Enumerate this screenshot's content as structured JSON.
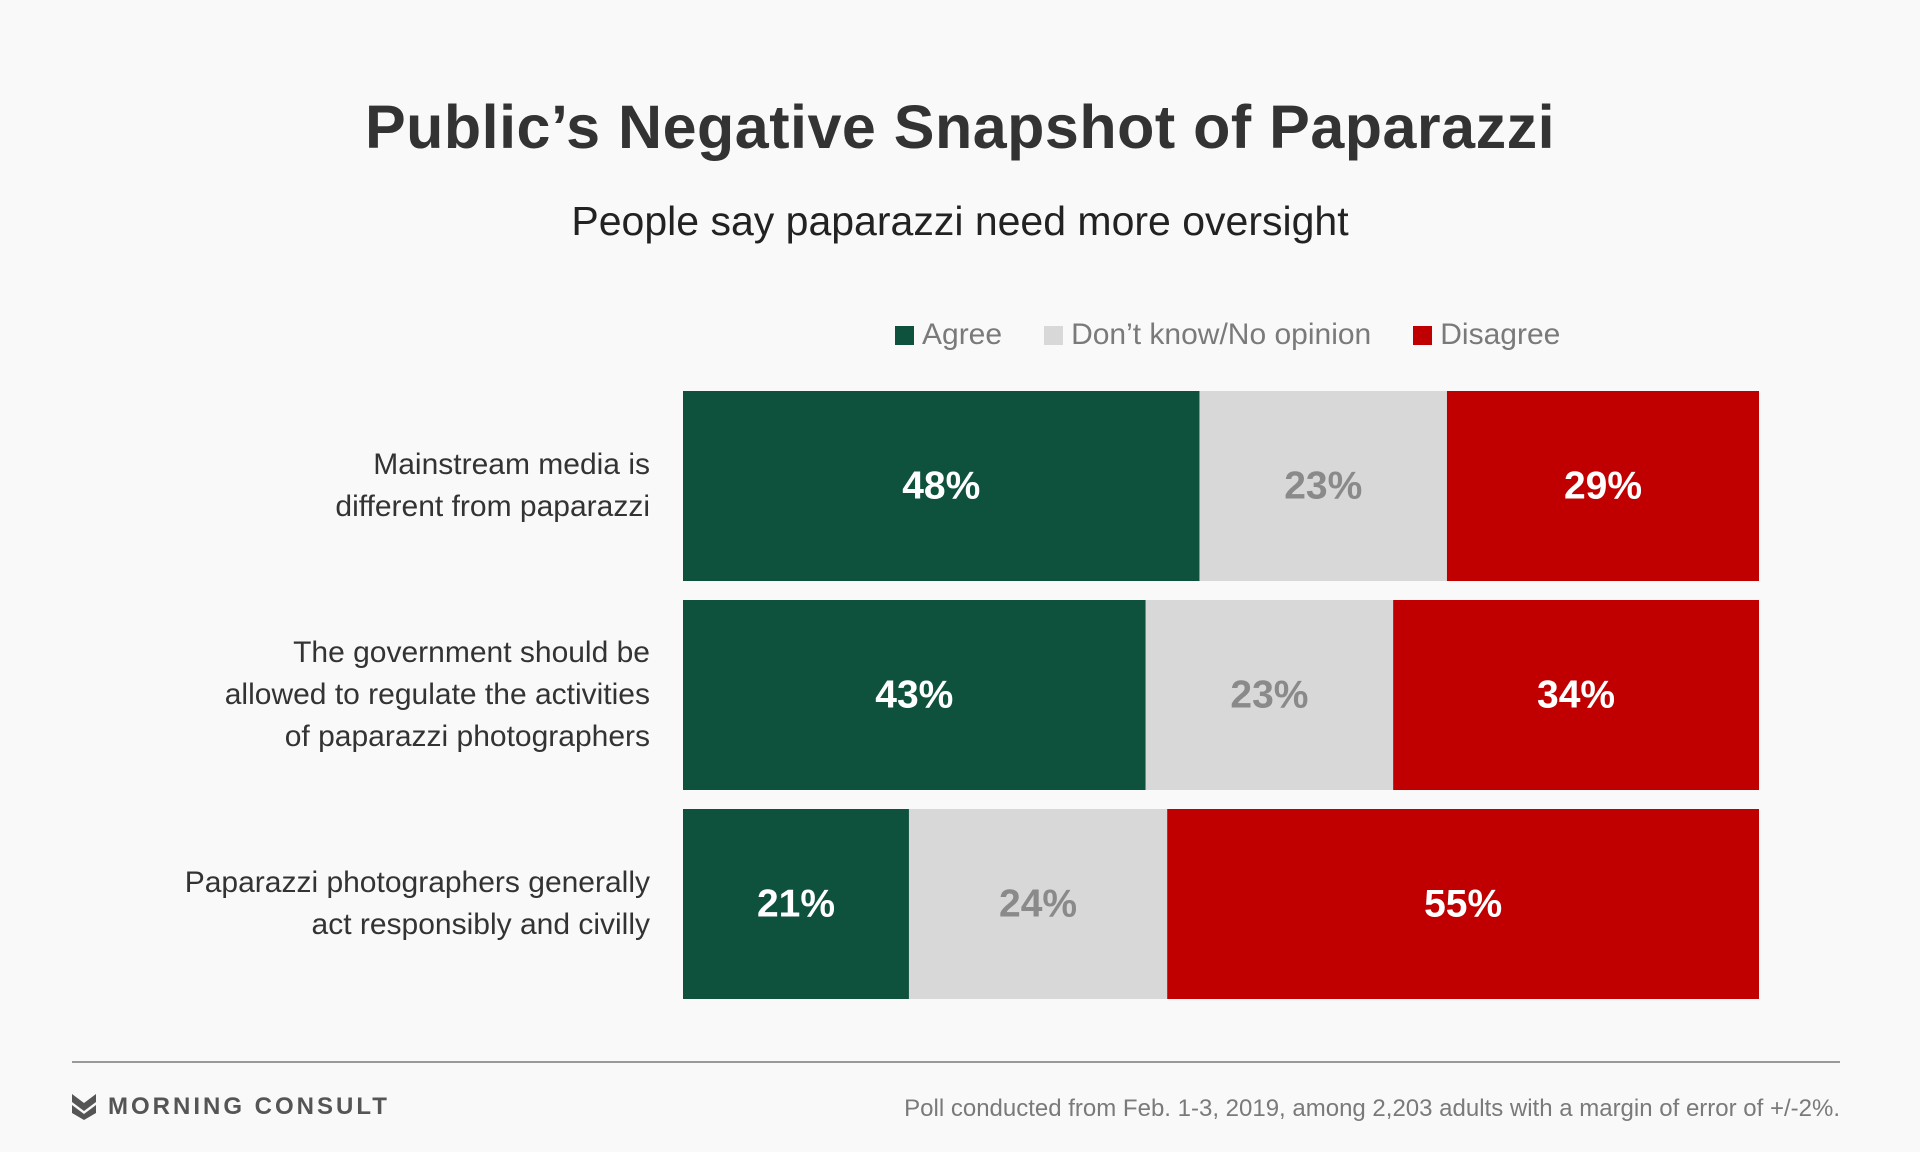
{
  "title": "Public’s Negative Snapshot of Paparazzi",
  "subtitle": "People say paparazzi need more oversight",
  "legend": [
    {
      "label": "Agree",
      "color": "#0e523d"
    },
    {
      "label": "Don’t know/No opinion",
      "color": "#d8d8d8"
    },
    {
      "label": "Disagree",
      "color": "#c00000"
    }
  ],
  "chart_data": {
    "type": "bar",
    "orientation": "horizontal",
    "stacked": true,
    "normalized": true,
    "legend_position": "top-right",
    "categories": [
      "Mainstream media is different from paparazzi",
      "The government should be allowed to regulate the activities of paparazzi photographers",
      "Paparazzi photographers generally act responsibly and civilly"
    ],
    "category_lines": [
      [
        "Mainstream media is",
        "different from paparazzi"
      ],
      [
        "The government should be",
        "allowed to regulate the activities",
        "of paparazzi photographers"
      ],
      [
        "Paparazzi photographers generally",
        "act responsibly and civilly"
      ]
    ],
    "series": [
      {
        "name": "Agree",
        "color": "#0e523d",
        "label_color": "#ffffff",
        "values": [
          48,
          43,
          21
        ],
        "labels": [
          "48%",
          "43%",
          "21%"
        ]
      },
      {
        "name": "Don’t know/No opinion",
        "color": "#d8d8d8",
        "label_color": "#8a8a8a",
        "values": [
          23,
          23,
          24
        ],
        "labels": [
          "23%",
          "23%",
          "24%"
        ]
      },
      {
        "name": "Disagree",
        "color": "#c00000",
        "label_color": "#ffffff",
        "values": [
          29,
          34,
          55
        ],
        "labels": [
          "29%",
          "34%",
          "55%"
        ]
      }
    ]
  },
  "footer": {
    "brand": "MORNING CONSULT",
    "source": "Poll conducted from Feb. 1-3, 2019, among 2,203 adults with a margin of error of +/-2%."
  }
}
